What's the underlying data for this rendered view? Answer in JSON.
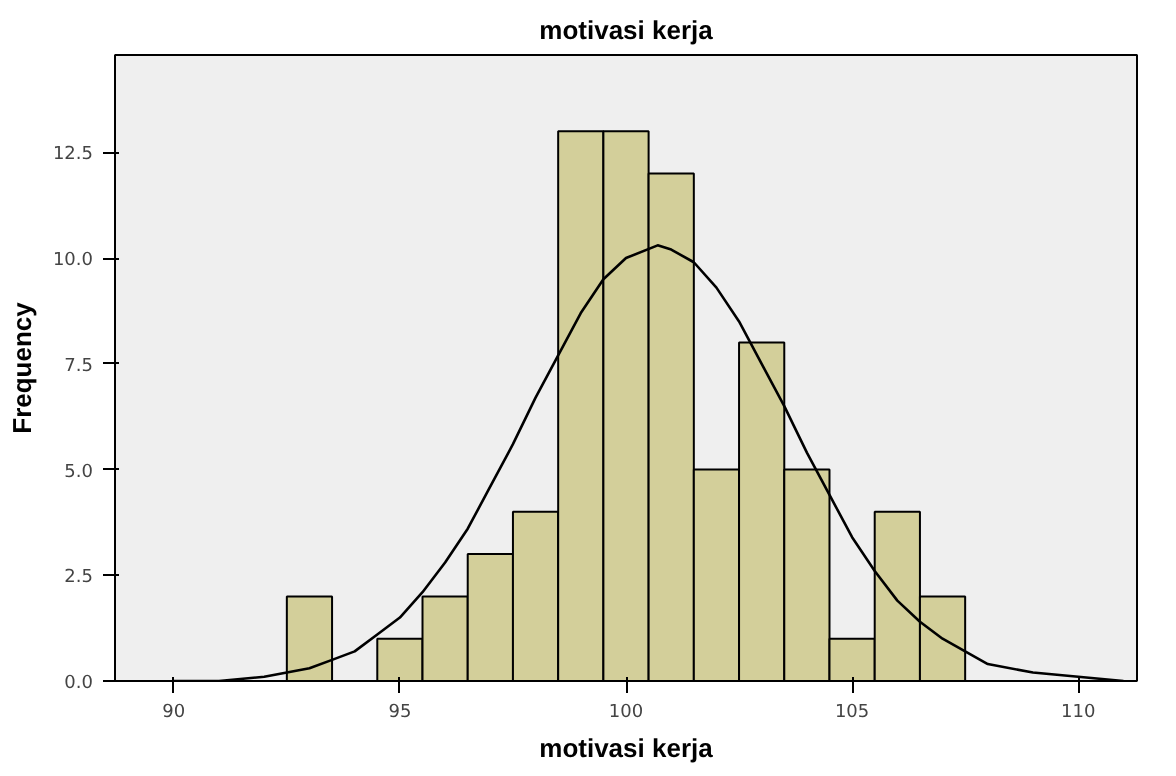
{
  "chart_data": {
    "type": "histogram",
    "title": "motivasi kerja",
    "xlabel": "motivasi kerja",
    "ylabel": "Frequency",
    "bins": [
      92.5,
      93.5,
      94.5,
      95.5,
      96.5,
      97.5,
      98.5,
      99.5,
      100.5,
      101.5,
      102.5,
      103.5,
      104.5,
      105.5,
      106.5,
      107.5
    ],
    "values": [
      2,
      0,
      1,
      2,
      3,
      4,
      13,
      13,
      12,
      5,
      8,
      5,
      1,
      4,
      2
    ],
    "color": "#d3cf9a",
    "series": [
      {
        "type": "line",
        "color": "#000000",
        "x": [
          90,
          91,
          92,
          93,
          93.5,
          94,
          94.5,
          95,
          95.5,
          96,
          96.5,
          97,
          97.5,
          98,
          98.5,
          99,
          99.5,
          100,
          100.7,
          101,
          101.5,
          102,
          102.5,
          103,
          103.5,
          104,
          104.5,
          105,
          105.5,
          106,
          106.5,
          107,
          107.5,
          108,
          109,
          110,
          111
        ],
        "values": [
          0.0,
          0.0,
          0.1,
          0.3,
          0.5,
          0.7,
          1.1,
          1.5,
          2.1,
          2.8,
          3.6,
          4.6,
          5.6,
          6.7,
          7.7,
          8.7,
          9.5,
          10.0,
          10.3,
          10.2,
          9.9,
          9.3,
          8.5,
          7.5,
          6.5,
          5.4,
          4.4,
          3.4,
          2.6,
          1.9,
          1.4,
          1.0,
          0.7,
          0.4,
          0.2,
          0.1,
          0.0
        ]
      }
    ],
    "xlim": [
      88.7,
      111.3
    ],
    "xticks": [
      90,
      95,
      100,
      105,
      110
    ],
    "ylim": [
      0,
      14.8
    ],
    "yticks": [
      {
        "value": 0,
        "label": "0.0"
      },
      {
        "value": 2.5,
        "label": "2.5"
      },
      {
        "value": 5,
        "label": "5.0"
      },
      {
        "value": 7.5,
        "label": "7.5"
      },
      {
        "value": 10,
        "label": "10.0"
      },
      {
        "value": 12.5,
        "label": "12.5"
      }
    ],
    "grid": false
  }
}
